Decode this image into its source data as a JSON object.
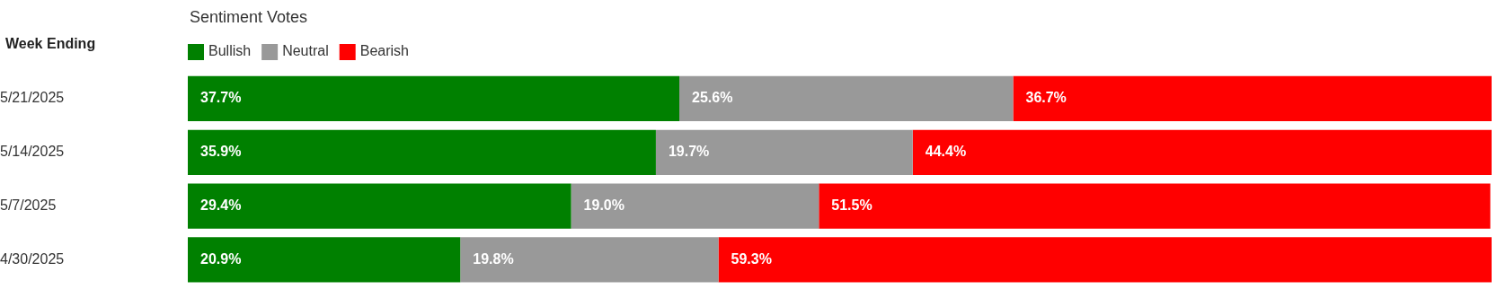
{
  "chart_data": {
    "type": "bar",
    "orientation": "horizontal",
    "stacked": true,
    "title": "Sentiment Votes",
    "ylabel": "Week Ending",
    "categories": [
      "5/21/2025",
      "5/14/2025",
      "5/7/2025",
      "4/30/2025"
    ],
    "xlim": [
      0,
      100
    ],
    "tick_labels": "y",
    "grid": false,
    "legend": "top left",
    "series": [
      {
        "name": "Bullish",
        "color": "#008000",
        "values": [
          37.7,
          35.9,
          29.4,
          20.9
        ],
        "value_labels": [
          "37.7%",
          "35.9%",
          "29.4%",
          "20.9%"
        ]
      },
      {
        "name": "Neutral",
        "color": "#999999",
        "values": [
          25.6,
          19.7,
          19.0,
          19.8
        ],
        "value_labels": [
          "25.6%",
          "19.7%",
          "19.0%",
          "19.8%"
        ]
      },
      {
        "name": "Bearish",
        "color": "#ff0000",
        "values": [
          36.7,
          44.4,
          51.5,
          59.3
        ],
        "value_labels": [
          "36.7%",
          "44.4%",
          "51.5%",
          "59.3%"
        ]
      }
    ]
  }
}
